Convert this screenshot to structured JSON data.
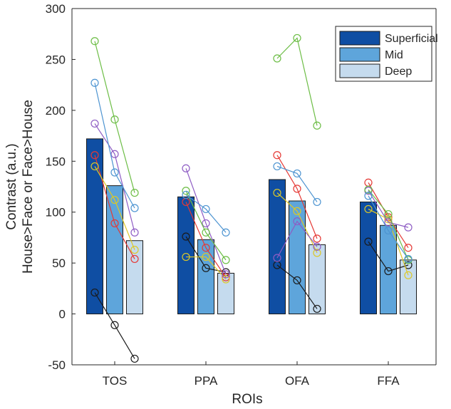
{
  "chart_data": {
    "type": "bar",
    "title": "",
    "xlabel": "ROIs",
    "ylabel_lines": [
      "Contrast (a.u.)",
      "House>Face or Face>House"
    ],
    "categories": [
      "TOS",
      "PPA",
      "OFA",
      "FFA"
    ],
    "ylim": [
      -50,
      300
    ],
    "yticks": [
      -50,
      0,
      50,
      100,
      150,
      200,
      250,
      300
    ],
    "legend_position": "top-right",
    "series": [
      {
        "name": "Superficial",
        "color": "#0f4ea3",
        "values": [
          172,
          115,
          132,
          110
        ]
      },
      {
        "name": "Mid",
        "color": "#5ea5db",
        "values": [
          126,
          73,
          111,
          87
        ]
      },
      {
        "name": "Deep",
        "color": "#c5dbee",
        "values": [
          72,
          40,
          68,
          53
        ]
      }
    ],
    "subjects": [
      {
        "color": "#1a1a1a",
        "values": [
          [
            21,
            -11,
            -44
          ],
          [
            76,
            45,
            41
          ],
          [
            48,
            33,
            5
          ],
          [
            71,
            42,
            48
          ]
        ]
      },
      {
        "color": "#e53935",
        "values": [
          [
            156,
            89,
            54
          ],
          [
            110,
            65,
            36
          ],
          [
            156,
            123,
            74
          ],
          [
            129,
            95,
            65
          ]
        ]
      },
      {
        "color": "#ddc827",
        "values": [
          [
            145,
            112,
            63
          ],
          [
            56,
            56,
            34
          ],
          [
            119,
            101,
            60
          ],
          [
            103,
            93,
            38
          ]
        ]
      },
      {
        "color": "#8e5cc4",
        "values": [
          [
            187,
            157,
            80
          ],
          [
            143,
            89,
            39
          ],
          [
            55,
            91,
            66
          ],
          [
            121,
            90,
            85
          ]
        ]
      },
      {
        "color": "#6cbd45",
        "values": [
          [
            268,
            191,
            119
          ],
          [
            121,
            80,
            53
          ],
          [
            251,
            271,
            185
          ],
          [
            122,
            98,
            53
          ]
        ]
      },
      {
        "color": "#4d94d1",
        "values": [
          [
            227,
            139,
            104
          ],
          [
            117,
            103,
            80
          ],
          [
            145,
            138,
            110
          ],
          [
            116,
            82,
            54
          ]
        ]
      }
    ]
  }
}
